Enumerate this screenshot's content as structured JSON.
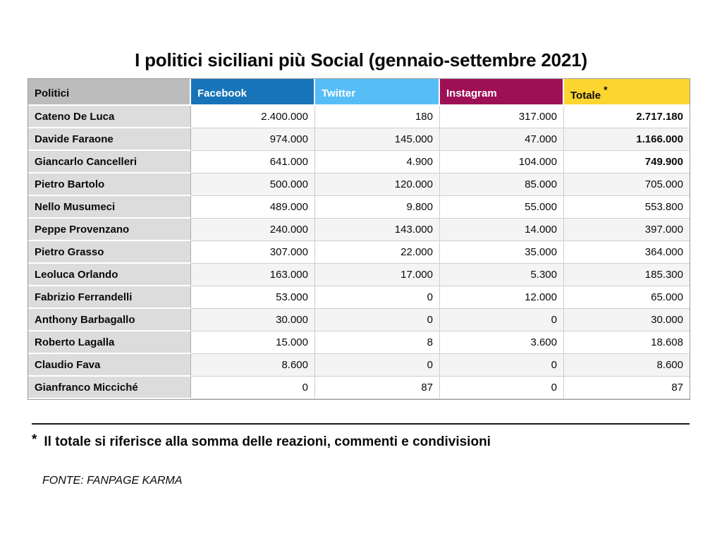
{
  "title": "I politici siciliani più Social (gennaio-settembre 2021)",
  "table": {
    "columns": [
      "Politici",
      "Facebook",
      "Twitter",
      "Instagram",
      "Totale"
    ],
    "totale_marker": "*",
    "rows": [
      {
        "politici": "Cateno De Luca",
        "facebook": "2.400.000",
        "twitter": "180",
        "instagram": "317.000",
        "totale": "2.717.180",
        "totale_bold": true
      },
      {
        "politici": "Davide Faraone",
        "facebook": "974.000",
        "twitter": "145.000",
        "instagram": "47.000",
        "totale": "1.166.000",
        "totale_bold": true
      },
      {
        "politici": "Giancarlo Cancelleri",
        "facebook": "641.000",
        "twitter": "4.900",
        "instagram": "104.000",
        "totale": "749.900",
        "totale_bold": true
      },
      {
        "politici": "Pietro Bartolo",
        "facebook": "500.000",
        "twitter": "120.000",
        "instagram": "85.000",
        "totale": "705.000",
        "totale_bold": false
      },
      {
        "politici": "Nello Musumeci",
        "facebook": "489.000",
        "twitter": "9.800",
        "instagram": "55.000",
        "totale": "553.800",
        "totale_bold": false
      },
      {
        "politici": "Peppe Provenzano",
        "facebook": "240.000",
        "twitter": "143.000",
        "instagram": "14.000",
        "totale": "397.000",
        "totale_bold": false
      },
      {
        "politici": "Pietro Grasso",
        "facebook": "307.000",
        "twitter": "22.000",
        "instagram": "35.000",
        "totale": "364.000",
        "totale_bold": false
      },
      {
        "politici": "Leoluca Orlando",
        "facebook": "163.000",
        "twitter": "17.000",
        "instagram": "5.300",
        "totale": "185.300",
        "totale_bold": false
      },
      {
        "politici": "Fabrizio Ferrandelli",
        "facebook": "53.000",
        "twitter": "0",
        "instagram": "12.000",
        "totale": "65.000",
        "totale_bold": false
      },
      {
        "politici": "Anthony Barbagallo",
        "facebook": "30.000",
        "twitter": "0",
        "instagram": "0",
        "totale": "30.000",
        "totale_bold": false
      },
      {
        "politici": "Roberto Lagalla",
        "facebook": "15.000",
        "twitter": "8",
        "instagram": "3.600",
        "totale": "18.608",
        "totale_bold": false
      },
      {
        "politici": "Claudio Fava",
        "facebook": "8.600",
        "twitter": "0",
        "instagram": "0",
        "totale": "8.600",
        "totale_bold": false
      },
      {
        "politici": "Gianfranco Micciché",
        "facebook": "0",
        "twitter": "87",
        "instagram": "0",
        "totale": "87",
        "totale_bold": false
      }
    ]
  },
  "footnote": {
    "marker": "*",
    "text": "Il totale si riferisce alla somma delle reazioni, commenti e condivisioni"
  },
  "source": "FONTE: FANPAGE KARMA",
  "colors": {
    "facebook_header": "#1774b8",
    "twitter_header": "#56bdf6",
    "instagram_header": "#9e1055",
    "totale_header": "#fdd530",
    "politici_header": "#bcbcbc",
    "name_cell": "#dcdcdc",
    "row_alt": "#f4f4f4"
  },
  "chart_data": {
    "type": "table",
    "title": "I politici siciliani più Social (gennaio-settembre 2021)",
    "categories": [
      "Cateno De Luca",
      "Davide Faraone",
      "Giancarlo Cancelleri",
      "Pietro Bartolo",
      "Nello Musumeci",
      "Peppe Provenzano",
      "Pietro Grasso",
      "Leoluca Orlando",
      "Fabrizio Ferrandelli",
      "Anthony Barbagallo",
      "Roberto Lagalla",
      "Claudio Fava",
      "Gianfranco Micciché"
    ],
    "series": [
      {
        "name": "Facebook",
        "values": [
          2400000,
          974000,
          641000,
          500000,
          489000,
          240000,
          307000,
          163000,
          53000,
          30000,
          15000,
          8600,
          0
        ]
      },
      {
        "name": "Twitter",
        "values": [
          180,
          145000,
          4900,
          120000,
          9800,
          143000,
          22000,
          17000,
          0,
          0,
          8,
          0,
          87
        ]
      },
      {
        "name": "Instagram",
        "values": [
          317000,
          47000,
          104000,
          85000,
          55000,
          14000,
          35000,
          5300,
          12000,
          0,
          3600,
          0,
          0
        ]
      },
      {
        "name": "Totale",
        "values": [
          2717180,
          1166000,
          749900,
          705000,
          553800,
          397000,
          364000,
          185300,
          65000,
          30000,
          18608,
          8600,
          87
        ]
      }
    ],
    "annotations": [
      "* Il totale si riferisce alla somma delle reazioni, commenti e condivisioni",
      "FONTE: FANPAGE KARMA"
    ]
  }
}
